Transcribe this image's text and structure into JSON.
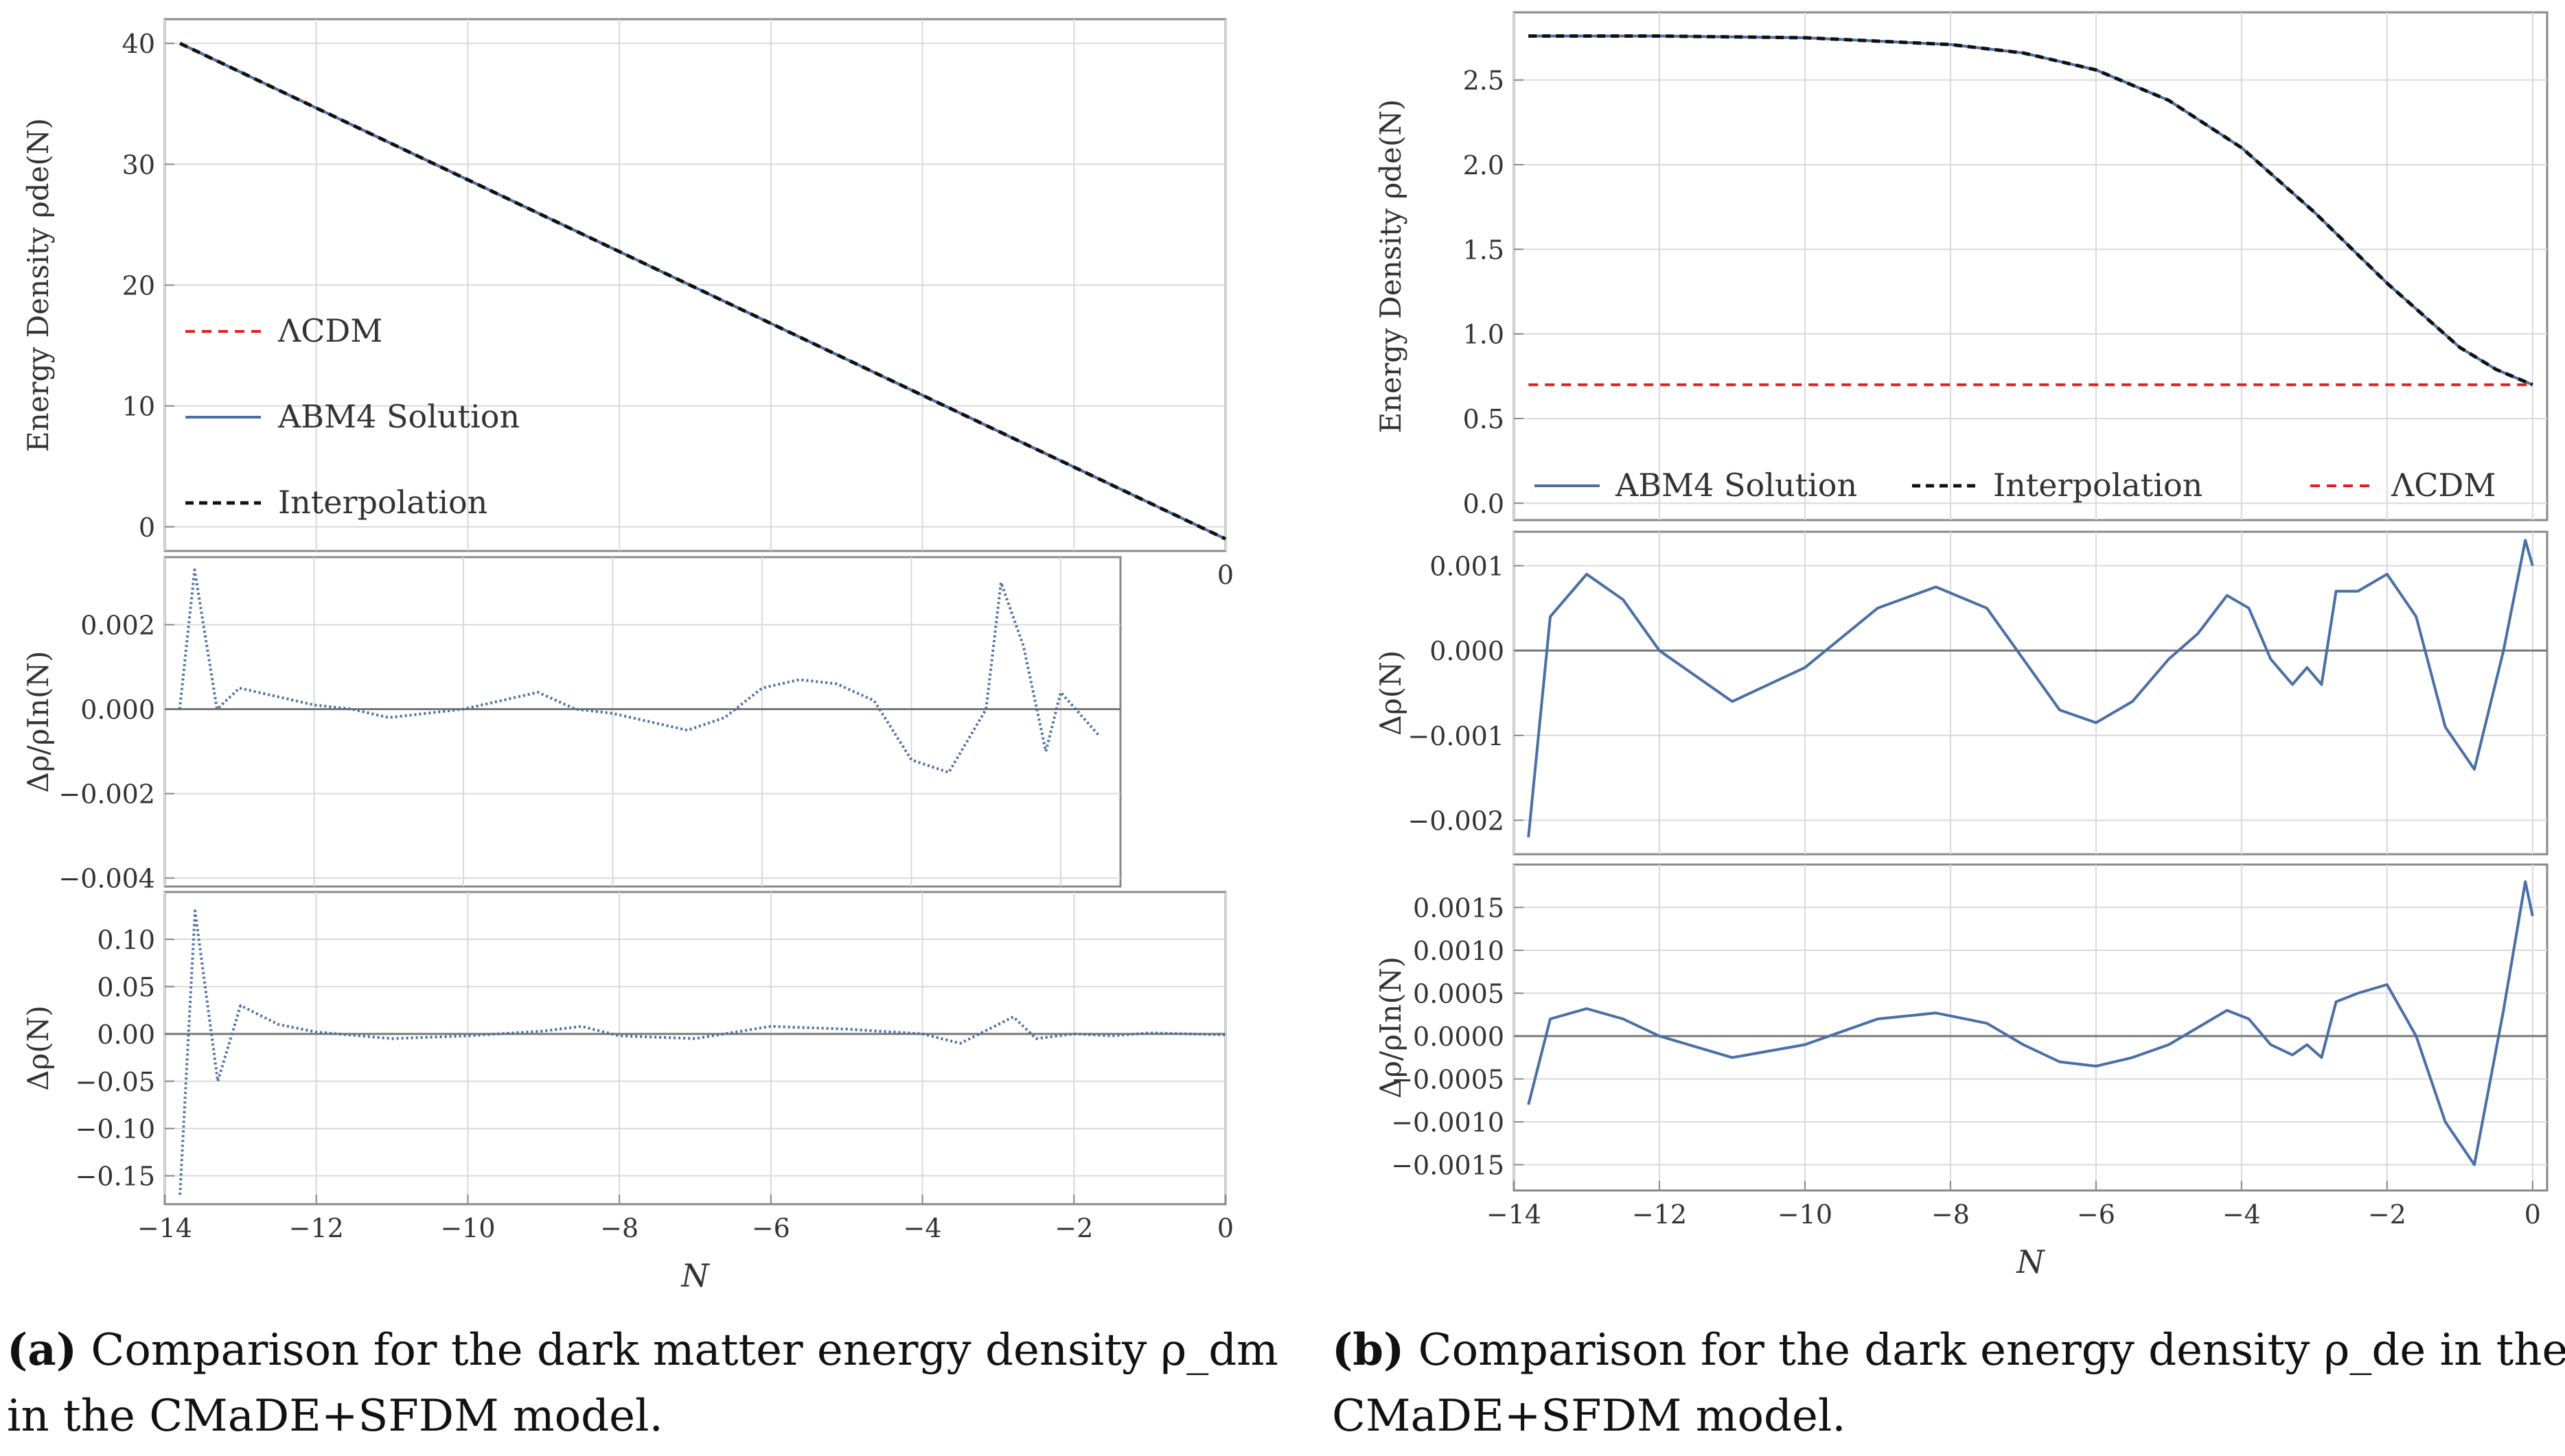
{
  "captions": [
    {
      "tag": "(a)",
      "line1": "Comparison for the dark matter energy density ρ_dm",
      "line2": "in the CMaDE+SFDM model."
    },
    {
      "tag": "(b)",
      "line1": "Comparison for the dark energy density ρ_de in the",
      "line2": "CMaDE+SFDM model."
    }
  ],
  "colors": {
    "abm4": "#4a6fa5",
    "lcdm": "#e02020",
    "interp": "#111111",
    "grid": "#d9d9d9",
    "frame": "#888888",
    "zero": "#777777"
  },
  "chart_data": [
    {
      "id": "a-top",
      "type": "line",
      "ylabel": "Energy Density ρde(N)",
      "xlim": [
        -14,
        0
      ],
      "ylim": [
        -2,
        42
      ],
      "xticks": [
        -14,
        -12,
        -10,
        -8,
        -6,
        -4,
        -2,
        0
      ],
      "yticks": [
        0,
        10,
        20,
        30,
        40
      ],
      "xtick_labels": [
        "0"
      ],
      "legend_position": "left",
      "legend": [
        "ΛCDM",
        "ABM4 Solution",
        "Interpolation"
      ],
      "series": [
        {
          "name": "ΛCDM",
          "style": "dashed-red",
          "x": [
            -13.8,
            0
          ],
          "y": [
            40.0,
            -1.0
          ]
        },
        {
          "name": "ABM4 Solution",
          "style": "solid-blue",
          "x": [
            -13.8,
            0
          ],
          "y": [
            40.0,
            -1.0
          ]
        },
        {
          "name": "Interpolation",
          "style": "dashed-black",
          "x": [
            -13.8,
            0
          ],
          "y": [
            40.0,
            -1.0
          ]
        }
      ]
    },
    {
      "id": "a-mid",
      "type": "scatter",
      "ylabel": "Δρ/ρIn(N)",
      "xlim": [
        -14,
        -1.2
      ],
      "ylim": [
        -0.0042,
        0.0036
      ],
      "yticks": [
        -0.004,
        -0.002,
        0.0,
        0.002
      ],
      "ytick_labels": [
        "−0.004",
        "−0.002",
        "0.000",
        "0.002"
      ],
      "series": [
        {
          "name": "ABM4 Solution",
          "style": "dotted-blue",
          "x": [
            -13.8,
            -13.6,
            -13.3,
            -13.0,
            -12.5,
            -12.0,
            -11.5,
            -11.0,
            -10.5,
            -10.0,
            -9.5,
            -9.0,
            -8.5,
            -8.0,
            -7.5,
            -7.0,
            -6.5,
            -6.0,
            -5.5,
            -5.0,
            -4.5,
            -4.0,
            -3.5,
            -3.0,
            -2.8,
            -2.5,
            -2.2,
            -2.0,
            -1.8,
            -1.5
          ],
          "y": [
            0.0,
            0.0033,
            0.0,
            0.0005,
            0.0003,
            0.0001,
            0.0,
            -0.0002,
            -0.0001,
            0.0,
            0.0002,
            0.0004,
            0.0,
            -0.0001,
            -0.0003,
            -0.0005,
            -0.0002,
            0.0005,
            0.0007,
            0.0006,
            0.0002,
            -0.0012,
            -0.0015,
            0.0,
            0.003,
            0.0015,
            -0.001,
            0.0004,
            0.0,
            -0.0006
          ]
        }
      ]
    },
    {
      "id": "a-bot",
      "type": "scatter",
      "ylabel": "Δρ(N)",
      "xlim": [
        -14,
        0
      ],
      "ylim": [
        -0.18,
        0.15
      ],
      "xticks": [
        -14,
        -12,
        -10,
        -8,
        -6,
        -4,
        -2,
        0
      ],
      "xtick_labels": [
        "−14",
        "−12",
        "−10",
        "−8",
        "−6",
        "−4",
        "−2",
        "0"
      ],
      "yticks": [
        -0.15,
        -0.1,
        -0.05,
        0.0,
        0.05,
        0.1
      ],
      "ytick_labels": [
        "−0.15",
        "−0.10",
        "−0.05",
        "0.00",
        "0.05",
        "0.10"
      ],
      "xlabel": "N",
      "series": [
        {
          "name": "ABM4 Solution",
          "style": "dotted-blue",
          "x": [
            -13.8,
            -13.6,
            -13.3,
            -13.0,
            -12.5,
            -12.0,
            -11.0,
            -10.0,
            -9.0,
            -8.5,
            -8.0,
            -7.0,
            -6.0,
            -5.0,
            -4.0,
            -3.5,
            -3.0,
            -2.8,
            -2.5,
            -2.0,
            -1.5,
            -1.0,
            0.0
          ],
          "y": [
            -0.17,
            0.13,
            -0.05,
            0.03,
            0.01,
            0.002,
            -0.005,
            -0.002,
            0.003,
            0.008,
            -0.002,
            -0.005,
            0.008,
            0.005,
            0.0,
            -0.01,
            0.01,
            0.018,
            -0.005,
            0.0,
            -0.002,
            0.001,
            -0.001
          ]
        }
      ]
    },
    {
      "id": "b-top",
      "type": "line",
      "ylabel": "Energy Density ρde(N)",
      "xlim": [
        -14,
        0.2
      ],
      "ylim": [
        -0.1,
        2.9
      ],
      "yticks": [
        0.0,
        0.5,
        1.0,
        1.5,
        2.0,
        2.5
      ],
      "ytick_labels": [
        "0.0",
        "0.5",
        "1.0",
        "1.5",
        "2.0",
        "2.5"
      ],
      "legend_position": "bottom",
      "legend": [
        "ABM4 Solution",
        "Interpolation",
        "ΛCDM"
      ],
      "series": [
        {
          "name": "ABM4 Solution",
          "style": "solid-blue",
          "x": [
            -13.8,
            -12,
            -10,
            -8,
            -7,
            -6,
            -5,
            -4,
            -3,
            -2,
            -1,
            -0.5,
            0
          ],
          "y": [
            2.76,
            2.76,
            2.75,
            2.71,
            2.66,
            2.56,
            2.38,
            2.1,
            1.72,
            1.3,
            0.92,
            0.79,
            0.7
          ]
        },
        {
          "name": "Interpolation",
          "style": "dashed-black",
          "x": [
            -13.8,
            -12,
            -10,
            -8,
            -7,
            -6,
            -5,
            -4,
            -3,
            -2,
            -1,
            -0.5,
            0
          ],
          "y": [
            2.76,
            2.76,
            2.75,
            2.71,
            2.66,
            2.56,
            2.38,
            2.1,
            1.72,
            1.3,
            0.92,
            0.79,
            0.7
          ]
        },
        {
          "name": "ΛCDM",
          "style": "dashed-red",
          "x": [
            -13.8,
            0
          ],
          "y": [
            0.7,
            0.7
          ]
        }
      ]
    },
    {
      "id": "b-mid",
      "type": "line",
      "ylabel": "Δρ(N)",
      "xlim": [
        -14,
        0.2
      ],
      "ylim": [
        -0.0024,
        0.0014
      ],
      "yticks": [
        -0.002,
        -0.001,
        0.0,
        0.001
      ],
      "ytick_labels": [
        "−0.002",
        "−0.001",
        "0.000",
        "0.001"
      ],
      "series": [
        {
          "name": "ABM4 Solution",
          "style": "solid-blue",
          "x": [
            -13.8,
            -13.5,
            -13.0,
            -12.5,
            -12.0,
            -11.0,
            -10.0,
            -9.0,
            -8.2,
            -7.5,
            -7.0,
            -6.5,
            -6.0,
            -5.5,
            -5.0,
            -4.6,
            -4.2,
            -3.9,
            -3.6,
            -3.3,
            -3.1,
            -2.9,
            -2.7,
            -2.4,
            -2.0,
            -1.6,
            -1.2,
            -0.8,
            -0.4,
            -0.1,
            0.0
          ],
          "y": [
            -0.0022,
            0.0004,
            0.0009,
            0.0006,
            0.0,
            -0.0006,
            -0.0002,
            0.0005,
            0.00075,
            0.0005,
            -0.0001,
            -0.0007,
            -0.00085,
            -0.0006,
            -0.0001,
            0.0002,
            0.00065,
            0.0005,
            -0.0001,
            -0.0004,
            -0.0002,
            -0.0004,
            0.0007,
            0.0007,
            0.0009,
            0.0004,
            -0.0009,
            -0.0014,
            0.0,
            0.0013,
            0.001
          ]
        }
      ]
    },
    {
      "id": "b-bot",
      "type": "line",
      "ylabel": "Δρ/ρIn(N)",
      "xlim": [
        -14,
        0.2
      ],
      "ylim": [
        -0.0018,
        0.002
      ],
      "xticks": [
        -14,
        -12,
        -10,
        -8,
        -6,
        -4,
        -2,
        0
      ],
      "xtick_labels": [
        "−14",
        "−12",
        "−10",
        "−8",
        "−6",
        "−4",
        "−2",
        "0"
      ],
      "yticks": [
        -0.0015,
        -0.001,
        -0.0005,
        0.0,
        0.0005,
        0.001,
        0.0015
      ],
      "ytick_labels": [
        "−0.0015",
        "−0.0010",
        "−0.0005",
        "0.0000",
        "0.0005",
        "0.0010",
        "0.0015"
      ],
      "xlabel": "N",
      "series": [
        {
          "name": "ABM4 Solution",
          "style": "solid-blue",
          "x": [
            -13.8,
            -13.5,
            -13.0,
            -12.5,
            -12.0,
            -11.0,
            -10.0,
            -9.0,
            -8.2,
            -7.5,
            -7.0,
            -6.5,
            -6.0,
            -5.5,
            -5.0,
            -4.6,
            -4.2,
            -3.9,
            -3.6,
            -3.3,
            -3.1,
            -2.9,
            -2.7,
            -2.4,
            -2.0,
            -1.6,
            -1.2,
            -0.8,
            -0.4,
            -0.1,
            0.0
          ],
          "y": [
            -0.0008,
            0.0002,
            0.00032,
            0.0002,
            0.0,
            -0.00025,
            -0.0001,
            0.0002,
            0.00027,
            0.00015,
            -0.0001,
            -0.0003,
            -0.00035,
            -0.00025,
            -0.0001,
            0.0001,
            0.0003,
            0.0002,
            -0.0001,
            -0.00022,
            -0.0001,
            -0.00025,
            0.0004,
            0.0005,
            0.0006,
            0.0,
            -0.001,
            -0.0015,
            0.0003,
            0.0018,
            0.0014
          ]
        }
      ]
    }
  ]
}
